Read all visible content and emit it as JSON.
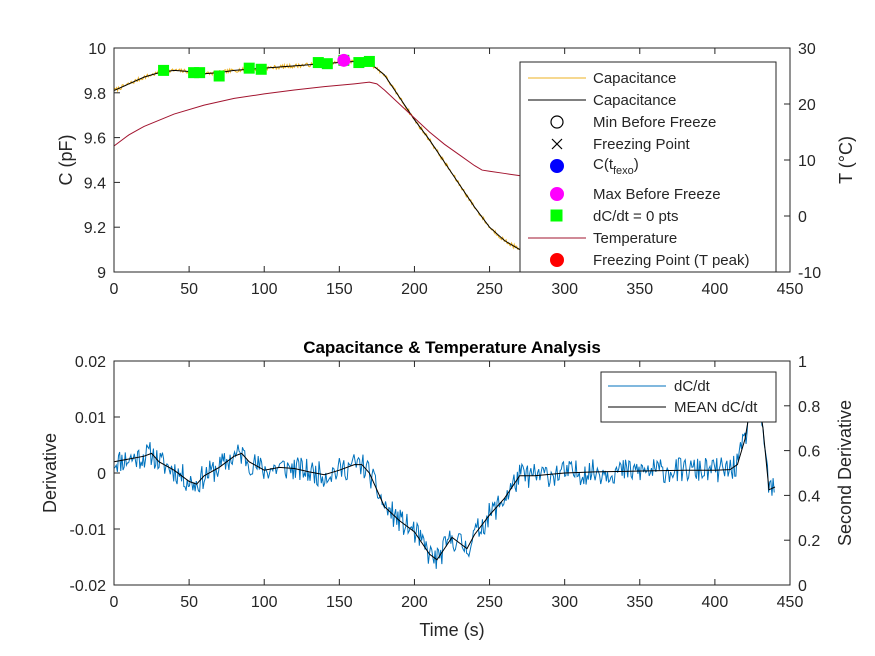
{
  "chart_data": [
    {
      "type": "line",
      "xlabel": "",
      "ylabel": "C (pF)",
      "ylabel_right": "T (°C)",
      "xlim": [
        0,
        450
      ],
      "ylim": [
        9,
        10
      ],
      "ylim_right": [
        -10,
        30
      ],
      "x_ticks": [
        "0",
        "50",
        "100",
        "150",
        "200",
        "250",
        "300",
        "350",
        "400",
        "450"
      ],
      "y_ticks": [
        "9",
        "9.2",
        "9.4",
        "9.6",
        "9.8",
        "10"
      ],
      "y_ticks_right": [
        "-10",
        "0",
        "10",
        "20",
        "30"
      ],
      "legend_position": "top-right",
      "legend": [
        {
          "label": "Capacitance",
          "kind": "line",
          "color": "#EDB120"
        },
        {
          "label": "Capacitance",
          "kind": "line",
          "color": "#000000"
        },
        {
          "label": "Min Before Freeze",
          "kind": "circle-open",
          "color": "#000000"
        },
        {
          "label": "Freezing Point",
          "kind": "cross",
          "color": "#000000"
        },
        {
          "label_main": "C(t",
          "label_sub": "fexo",
          "label_end": ")",
          "kind": "dot",
          "color": "#0000FF"
        },
        {
          "label": "Max Before Freeze",
          "kind": "dot",
          "color": "#FF00FF"
        },
        {
          "label": "dC/dt = 0 pts",
          "kind": "square",
          "color": "#00FF00"
        },
        {
          "label": "Temperature",
          "kind": "line",
          "color": "#A2142F"
        },
        {
          "label": "Freezing Point (T peak)",
          "kind": "dot",
          "color": "#FF0000"
        }
      ],
      "series": [
        {
          "name": "Capacitance",
          "color": "#EDB120",
          "axis": "left",
          "x": [
            0,
            10,
            20,
            30,
            40,
            50,
            60,
            70,
            80,
            90,
            100,
            110,
            120,
            130,
            140,
            150,
            160,
            170,
            180,
            190,
            200,
            210,
            220,
            230,
            240,
            250,
            260,
            270,
            275
          ],
          "y": [
            9.81,
            9.84,
            9.87,
            9.89,
            9.9,
            9.895,
            9.885,
            9.89,
            9.9,
            9.905,
            9.91,
            9.915,
            9.92,
            9.925,
            9.93,
            9.935,
            9.94,
            9.935,
            9.88,
            9.78,
            9.68,
            9.59,
            9.49,
            9.39,
            9.29,
            9.2,
            9.14,
            9.1,
            9.09
          ]
        },
        {
          "name": "Capacitance",
          "color": "#000000",
          "axis": "left",
          "x": [
            0,
            10,
            20,
            30,
            40,
            50,
            60,
            70,
            80,
            90,
            100,
            110,
            120,
            130,
            140,
            150,
            160,
            170,
            180,
            190,
            200,
            210,
            220,
            230,
            240,
            250,
            260,
            270,
            275
          ],
          "y": [
            9.81,
            9.84,
            9.87,
            9.89,
            9.9,
            9.895,
            9.885,
            9.89,
            9.9,
            9.905,
            9.91,
            9.915,
            9.92,
            9.925,
            9.93,
            9.935,
            9.94,
            9.935,
            9.88,
            9.78,
            9.68,
            9.59,
            9.49,
            9.39,
            9.29,
            9.2,
            9.14,
            9.1,
            9.09
          ]
        },
        {
          "name": "Temperature",
          "color": "#A2142F",
          "axis": "right",
          "x": [
            0,
            10,
            20,
            40,
            60,
            80,
            100,
            120,
            140,
            160,
            170,
            175,
            180,
            190,
            200,
            210,
            220,
            230,
            240,
            245,
            250,
            260,
            270,
            275
          ],
          "y": [
            12.5,
            14.5,
            16,
            18.2,
            19.8,
            21,
            21.8,
            22.5,
            23.1,
            23.6,
            23.9,
            23.6,
            22.5,
            20,
            17.5,
            15,
            12.8,
            10.9,
            9,
            8.2,
            8,
            7.6,
            7.2,
            7
          ]
        }
      ],
      "markers": {
        "zero_derivative_points": {
          "x": [
            33,
            53,
            57,
            70,
            90,
            98,
            136,
            142,
            153,
            163,
            170
          ],
          "y": [
            9.9,
            9.89,
            9.89,
            9.875,
            9.91,
            9.905,
            9.935,
            9.93,
            9.945,
            9.935,
            9.94
          ]
        },
        "max_before_freeze": {
          "x": 153,
          "y": 9.945
        }
      }
    },
    {
      "type": "line",
      "title": "Capacitance & Temperature Analysis",
      "xlabel": "Time (s)",
      "ylabel": "Derivative",
      "ylabel_right": "Second Derivative",
      "xlim": [
        0,
        450
      ],
      "ylim": [
        -0.02,
        0.02
      ],
      "ylim_right": [
        0,
        1
      ],
      "x_ticks": [
        "0",
        "50",
        "100",
        "150",
        "200",
        "250",
        "300",
        "350",
        "400",
        "450"
      ],
      "y_ticks": [
        "-0.02",
        "-0.01",
        "0",
        "0.01",
        "0.02"
      ],
      "y_ticks_right": [
        "0",
        "0.2",
        "0.4",
        "0.6",
        "0.8",
        "1"
      ],
      "legend_position": "top-right",
      "legend": [
        {
          "label": "dC/dt",
          "kind": "line",
          "color": "#0072BD"
        },
        {
          "label": "MEAN dC/dt",
          "kind": "line",
          "color": "#000000"
        }
      ],
      "series": [
        {
          "name": "MEAN dC/dt",
          "color": "#000000",
          "axis": "left",
          "x": [
            0,
            10,
            20,
            25,
            30,
            40,
            50,
            55,
            60,
            70,
            80,
            85,
            90,
            100,
            110,
            120,
            130,
            140,
            150,
            160,
            165,
            170,
            180,
            190,
            200,
            205,
            210,
            215,
            220,
            225,
            230,
            235,
            240,
            250,
            260,
            270,
            280,
            300,
            320,
            340,
            360,
            380,
            400,
            410,
            415,
            420,
            425,
            428,
            432,
            436,
            440
          ],
          "y": [
            0.002,
            0.0025,
            0.003,
            0.0035,
            0.002,
            0.0005,
            -0.0015,
            -0.002,
            -0.0005,
            0.001,
            0.003,
            0.0035,
            0.002,
            0.0005,
            0.001,
            0.0008,
            0.0002,
            -0.0003,
            0.0005,
            0.0015,
            0.0015,
            0.0,
            -0.006,
            -0.0085,
            -0.0105,
            -0.0125,
            -0.0145,
            -0.0155,
            -0.0135,
            -0.0115,
            -0.0125,
            -0.0135,
            -0.011,
            -0.0075,
            -0.0045,
            -0.0005,
            -0.0005,
            0.0,
            0.0002,
            0.0003,
            0.0004,
            0.0005,
            0.0005,
            0.0006,
            0.0015,
            0.006,
            0.014,
            0.016,
            0.008,
            -0.003,
            -0.0025
          ]
        },
        {
          "name": "dC/dt",
          "color": "#0072BD",
          "axis": "left",
          "x": [
            0,
            10,
            20,
            25,
            30,
            40,
            50,
            55,
            60,
            70,
            80,
            85,
            90,
            100,
            110,
            120,
            130,
            140,
            150,
            160,
            165,
            170,
            180,
            190,
            200,
            205,
            210,
            215,
            220,
            225,
            230,
            235,
            240,
            250,
            260,
            270,
            280,
            300,
            320,
            340,
            360,
            380,
            400,
            410,
            415,
            420,
            425,
            428,
            432,
            436,
            440
          ],
          "y": [
            0.002,
            0.0025,
            0.003,
            0.0035,
            0.002,
            0.0005,
            -0.0015,
            -0.002,
            -0.0005,
            0.001,
            0.003,
            0.0035,
            0.002,
            0.0005,
            0.001,
            0.0008,
            0.0002,
            -0.0003,
            0.0005,
            0.0015,
            0.0015,
            0.0,
            -0.006,
            -0.0085,
            -0.0105,
            -0.0125,
            -0.0145,
            -0.0155,
            -0.0135,
            -0.0115,
            -0.0125,
            -0.0135,
            -0.011,
            -0.0075,
            -0.0045,
            -0.0005,
            -0.0005,
            0.0,
            0.0002,
            0.0003,
            0.0004,
            0.0005,
            0.0005,
            0.0006,
            0.0015,
            0.006,
            0.014,
            0.016,
            0.008,
            -0.003,
            -0.0025
          ]
        }
      ]
    }
  ]
}
